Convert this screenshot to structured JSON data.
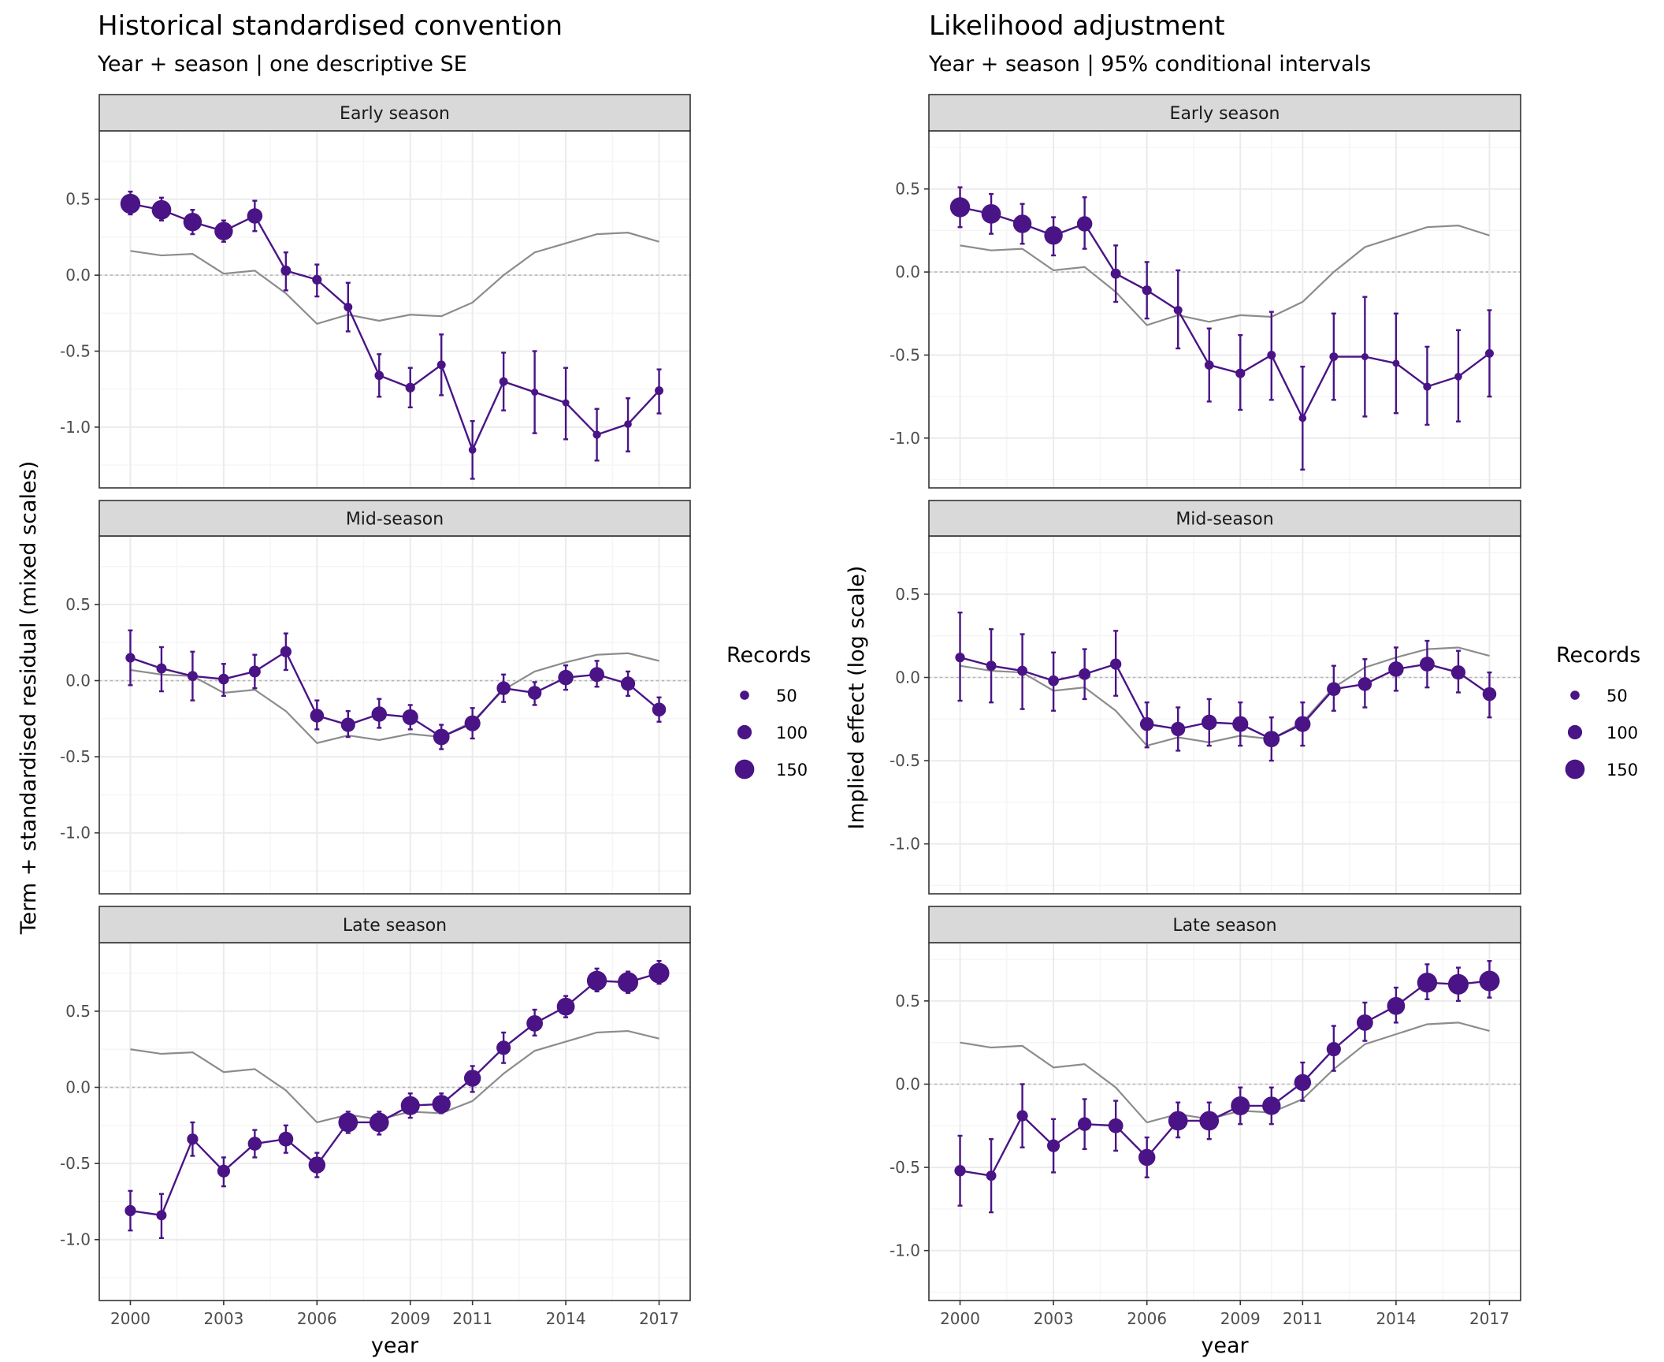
{
  "chart_data": [
    {
      "type": "line",
      "title": "Historical standardised convention",
      "subtitle": "Year + season | one descriptive SE",
      "xlabel": "year",
      "ylabel": "Term + standardised residual (mixed scales)",
      "ylim": [
        -1.4,
        0.95
      ],
      "xlim": [
        1999.0,
        2018.0
      ],
      "x_ticks": [
        2000,
        2003,
        2006,
        2009,
        2011,
        2014,
        2017
      ],
      "x_tick_labels": [
        "2000",
        "2003",
        "2006",
        "2009",
        "2011",
        "2014",
        "2017"
      ],
      "y_ticks": [
        -1.0,
        -0.5,
        0.0,
        0.5
      ],
      "y_tick_labels": [
        "-1.0",
        "-0.5",
        "0.0",
        "0.5"
      ],
      "grid": true,
      "reference_line": 0,
      "legend": {
        "title": "Records",
        "entries": [
          {
            "label": "50",
            "value": 50
          },
          {
            "label": "100",
            "value": 100
          },
          {
            "label": "150",
            "value": 150
          }
        ],
        "position": "right"
      },
      "panels": [
        {
          "label": "Early season",
          "x": [
            2000,
            2001,
            2002,
            2003,
            2004,
            2005,
            2006,
            2007,
            2008,
            2009,
            2010,
            2011,
            2012,
            2013,
            2014,
            2015,
            2016,
            2017
          ],
          "estimate": [
            0.47,
            0.43,
            0.35,
            0.29,
            0.39,
            0.03,
            -0.03,
            -0.21,
            -0.66,
            -0.74,
            -0.59,
            -1.15,
            -0.7,
            -0.77,
            -0.84,
            -1.05,
            -0.98,
            -0.76
          ],
          "lower": [
            0.4,
            0.36,
            0.27,
            0.22,
            0.29,
            -0.1,
            -0.14,
            -0.37,
            -0.8,
            -0.87,
            -0.79,
            -1.34,
            -0.89,
            -1.04,
            -1.08,
            -1.22,
            -1.16,
            -0.91
          ],
          "upper": [
            0.55,
            0.51,
            0.43,
            0.36,
            0.49,
            0.15,
            0.07,
            -0.05,
            -0.52,
            -0.61,
            -0.39,
            -0.96,
            -0.51,
            -0.5,
            -0.61,
            -0.88,
            -0.81,
            -0.62
          ],
          "records": [
            155,
            150,
            140,
            140,
            110,
            60,
            55,
            45,
            50,
            55,
            45,
            35,
            45,
            30,
            30,
            40,
            35,
            45
          ],
          "reference": [
            0.16,
            0.13,
            0.14,
            0.01,
            0.03,
            -0.12,
            -0.32,
            -0.26,
            -0.3,
            -0.26,
            -0.27,
            -0.18,
            0.0,
            0.15,
            0.21,
            0.27,
            0.28,
            0.22
          ]
        },
        {
          "label": "Mid-season",
          "x": [
            2000,
            2001,
            2002,
            2003,
            2004,
            2005,
            2006,
            2007,
            2008,
            2009,
            2010,
            2011,
            2012,
            2013,
            2014,
            2015,
            2016,
            2017
          ],
          "estimate": [
            0.15,
            0.08,
            0.03,
            0.01,
            0.06,
            0.19,
            -0.23,
            -0.29,
            -0.22,
            -0.24,
            -0.37,
            -0.28,
            -0.05,
            -0.08,
            0.02,
            0.04,
            -0.02,
            -0.19
          ],
          "lower": [
            -0.03,
            -0.07,
            -0.13,
            -0.1,
            -0.05,
            0.07,
            -0.32,
            -0.37,
            -0.31,
            -0.32,
            -0.45,
            -0.38,
            -0.14,
            -0.16,
            -0.06,
            -0.04,
            -0.1,
            -0.27
          ],
          "upper": [
            0.33,
            0.22,
            0.19,
            0.11,
            0.17,
            0.31,
            -0.13,
            -0.2,
            -0.12,
            -0.16,
            -0.29,
            -0.18,
            0.04,
            -0.01,
            0.1,
            0.13,
            0.06,
            -0.11
          ],
          "records": [
            55,
            60,
            60,
            65,
            75,
            70,
            95,
            100,
            110,
            115,
            120,
            115,
            95,
            95,
            110,
            105,
            100,
            95
          ],
          "reference": [
            0.07,
            0.04,
            0.03,
            -0.08,
            -0.06,
            -0.2,
            -0.41,
            -0.36,
            -0.39,
            -0.35,
            -0.37,
            -0.27,
            -0.06,
            0.06,
            0.12,
            0.17,
            0.18,
            0.13
          ]
        },
        {
          "label": "Late season",
          "x": [
            2000,
            2001,
            2002,
            2003,
            2004,
            2005,
            2006,
            2007,
            2008,
            2009,
            2010,
            2011,
            2012,
            2013,
            2014,
            2015,
            2016,
            2017
          ],
          "estimate": [
            -0.81,
            -0.84,
            -0.34,
            -0.55,
            -0.37,
            -0.34,
            -0.51,
            -0.23,
            -0.23,
            -0.12,
            -0.11,
            0.06,
            0.26,
            0.42,
            0.53,
            0.7,
            0.69,
            0.75
          ],
          "lower": [
            -0.94,
            -0.99,
            -0.45,
            -0.65,
            -0.46,
            -0.43,
            -0.59,
            -0.3,
            -0.31,
            -0.2,
            -0.17,
            -0.03,
            0.16,
            0.34,
            0.46,
            0.63,
            0.62,
            0.68
          ],
          "upper": [
            -0.68,
            -0.7,
            -0.23,
            -0.46,
            -0.28,
            -0.25,
            -0.43,
            -0.16,
            -0.16,
            -0.04,
            -0.04,
            0.14,
            0.36,
            0.51,
            0.6,
            0.78,
            0.76,
            0.83
          ],
          "records": [
            70,
            60,
            70,
            85,
            95,
            105,
            125,
            150,
            150,
            145,
            140,
            125,
            100,
            120,
            135,
            155,
            160,
            160
          ],
          "reference": [
            0.25,
            0.22,
            0.23,
            0.1,
            0.12,
            -0.02,
            -0.23,
            -0.18,
            -0.21,
            -0.16,
            -0.17,
            -0.09,
            0.09,
            0.24,
            0.3,
            0.36,
            0.37,
            0.32
          ]
        }
      ]
    },
    {
      "type": "line",
      "title": "Likelihood adjustment",
      "subtitle": "Year + season | 95% conditional intervals",
      "xlabel": "year",
      "ylabel": "Implied effect (log scale)",
      "ylim": [
        -1.3,
        0.85
      ],
      "xlim": [
        1999.0,
        2018.0
      ],
      "x_ticks": [
        2000,
        2003,
        2006,
        2009,
        2011,
        2014,
        2017
      ],
      "x_tick_labels": [
        "2000",
        "2003",
        "2006",
        "2009",
        "2011",
        "2014",
        "2017"
      ],
      "y_ticks": [
        -1.0,
        -0.5,
        0.0,
        0.5
      ],
      "y_tick_labels": [
        "-1.0",
        "-0.5",
        "0.0",
        "0.5"
      ],
      "grid": true,
      "reference_line": 0,
      "legend": {
        "title": "Records",
        "entries": [
          {
            "label": "50",
            "value": 50
          },
          {
            "label": "100",
            "value": 100
          },
          {
            "label": "150",
            "value": 150
          }
        ],
        "position": "right"
      },
      "panels": [
        {
          "label": "Early season",
          "x": [
            2000,
            2001,
            2002,
            2003,
            2004,
            2005,
            2006,
            2007,
            2008,
            2009,
            2010,
            2011,
            2012,
            2013,
            2014,
            2015,
            2016,
            2017
          ],
          "estimate": [
            0.39,
            0.35,
            0.29,
            0.22,
            0.29,
            -0.01,
            -0.11,
            -0.23,
            -0.56,
            -0.61,
            -0.5,
            -0.88,
            -0.51,
            -0.51,
            -0.55,
            -0.69,
            -0.63,
            -0.49
          ],
          "lower": [
            0.27,
            0.23,
            0.17,
            0.1,
            0.14,
            -0.18,
            -0.28,
            -0.46,
            -0.78,
            -0.83,
            -0.77,
            -1.19,
            -0.77,
            -0.87,
            -0.85,
            -0.92,
            -0.9,
            -0.75
          ],
          "upper": [
            0.51,
            0.47,
            0.41,
            0.33,
            0.45,
            0.16,
            0.06,
            0.01,
            -0.34,
            -0.38,
            -0.24,
            -0.57,
            -0.25,
            -0.15,
            -0.25,
            -0.45,
            -0.35,
            -0.23
          ],
          "records": [
            155,
            150,
            140,
            140,
            110,
            60,
            55,
            45,
            50,
            55,
            45,
            35,
            45,
            30,
            30,
            40,
            35,
            45
          ],
          "reference": [
            0.16,
            0.13,
            0.14,
            0.01,
            0.03,
            -0.12,
            -0.32,
            -0.26,
            -0.3,
            -0.26,
            -0.27,
            -0.18,
            0.0,
            0.15,
            0.21,
            0.27,
            0.28,
            0.22
          ]
        },
        {
          "label": "Mid-season",
          "x": [
            2000,
            2001,
            2002,
            2003,
            2004,
            2005,
            2006,
            2007,
            2008,
            2009,
            2010,
            2011,
            2012,
            2013,
            2014,
            2015,
            2016,
            2017
          ],
          "estimate": [
            0.12,
            0.07,
            0.04,
            -0.02,
            0.02,
            0.08,
            -0.28,
            -0.31,
            -0.27,
            -0.28,
            -0.37,
            -0.28,
            -0.07,
            -0.04,
            0.05,
            0.08,
            0.03,
            -0.1
          ],
          "lower": [
            -0.14,
            -0.15,
            -0.19,
            -0.2,
            -0.13,
            -0.11,
            -0.42,
            -0.44,
            -0.41,
            -0.41,
            -0.5,
            -0.41,
            -0.2,
            -0.18,
            -0.08,
            -0.06,
            -0.09,
            -0.24
          ],
          "upper": [
            0.39,
            0.29,
            0.26,
            0.15,
            0.17,
            0.28,
            -0.15,
            -0.18,
            -0.13,
            -0.15,
            -0.24,
            -0.15,
            0.07,
            0.11,
            0.18,
            0.22,
            0.16,
            0.03
          ],
          "records": [
            55,
            60,
            60,
            65,
            75,
            70,
            95,
            100,
            110,
            115,
            120,
            115,
            95,
            95,
            110,
            105,
            100,
            95
          ],
          "reference": [
            0.07,
            0.04,
            0.03,
            -0.08,
            -0.06,
            -0.2,
            -0.41,
            -0.36,
            -0.39,
            -0.35,
            -0.37,
            -0.27,
            -0.06,
            0.06,
            0.12,
            0.17,
            0.18,
            0.13
          ]
        },
        {
          "label": "Late season",
          "x": [
            2000,
            2001,
            2002,
            2003,
            2004,
            2005,
            2006,
            2007,
            2008,
            2009,
            2010,
            2011,
            2012,
            2013,
            2014,
            2015,
            2016,
            2017
          ],
          "estimate": [
            -0.52,
            -0.55,
            -0.19,
            -0.37,
            -0.24,
            -0.25,
            -0.44,
            -0.22,
            -0.22,
            -0.13,
            -0.13,
            0.01,
            0.21,
            0.37,
            0.47,
            0.61,
            0.6,
            0.62
          ],
          "lower": [
            -0.73,
            -0.77,
            -0.38,
            -0.53,
            -0.39,
            -0.4,
            -0.56,
            -0.32,
            -0.33,
            -0.24,
            -0.24,
            -0.1,
            0.08,
            0.26,
            0.37,
            0.51,
            0.5,
            0.52
          ],
          "upper": [
            -0.31,
            -0.33,
            0.0,
            -0.21,
            -0.09,
            -0.1,
            -0.32,
            -0.11,
            -0.11,
            -0.02,
            -0.02,
            0.13,
            0.35,
            0.49,
            0.58,
            0.72,
            0.7,
            0.74
          ],
          "records": [
            70,
            60,
            70,
            85,
            95,
            105,
            125,
            150,
            150,
            145,
            140,
            125,
            100,
            120,
            135,
            155,
            160,
            160
          ],
          "reference": [
            0.25,
            0.22,
            0.23,
            0.1,
            0.12,
            -0.02,
            -0.23,
            -0.18,
            -0.21,
            -0.16,
            -0.17,
            -0.09,
            0.09,
            0.24,
            0.3,
            0.36,
            0.37,
            0.32
          ]
        }
      ]
    }
  ],
  "colors": {
    "series": "#4a1486",
    "reference_line": "#8c8c8c",
    "zero_line": "#b3b3b3",
    "strip_fill": "#d9d9d9",
    "strip_border": "#333333",
    "panel_border": "#333333",
    "grid_major": "#ebebeb",
    "grid_minor": "#f5f5f5"
  }
}
